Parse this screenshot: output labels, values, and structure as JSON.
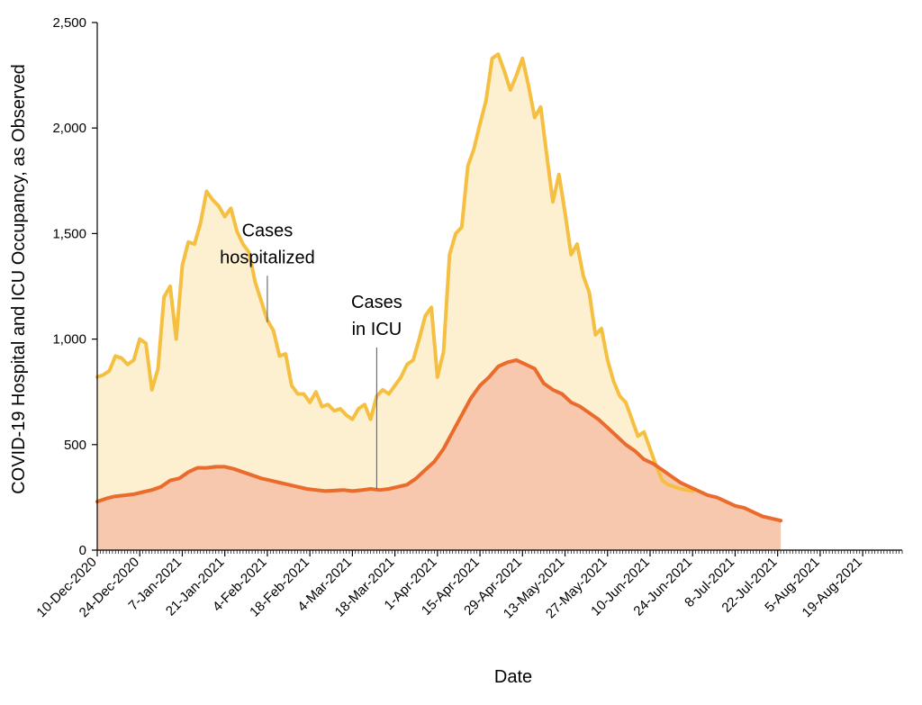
{
  "chart_data": {
    "type": "area",
    "title": "",
    "xlabel": "Date",
    "ylabel": "COVID-19 Hospital and ICU Occupancy, as Observed",
    "ylim": [
      0,
      2500
    ],
    "yticks": [
      0,
      500,
      1000,
      1500,
      2000,
      2500
    ],
    "ytick_labels": [
      "0",
      "500",
      "1,000",
      "1,500",
      "2,000",
      "2,500"
    ],
    "xlim": [
      "2020-12-10",
      "2021-09-01"
    ],
    "xtick_labels": [
      "10-Dec-2020",
      "24-Dec-2020",
      "7-Jan-2021",
      "21-Jan-2021",
      "4-Feb-2021",
      "18-Feb-2021",
      "4-Mar-2021",
      "18-Mar-2021",
      "1-Apr-2021",
      "15-Apr-2021",
      "29-Apr-2021",
      "13-May-2021",
      "27-May-2021",
      "10-Jun-2021",
      "24-Jun-2021",
      "8-Jul-2021",
      "22-Jul-2021",
      "5-Aug-2021",
      "19-Aug-2021"
    ],
    "grid": false,
    "colors": {
      "hospital_line": "#f5bf42",
      "hospital_fill": "#fcf0d0",
      "icu_line": "#ea6b2c",
      "icu_fill": "#f7c8ad"
    },
    "annotations": [
      {
        "lines": [
          "Cases",
          "hospitalized"
        ],
        "x": "2021-02-04",
        "y": 1300,
        "target_y": 1080
      },
      {
        "lines": [
          "Cases",
          "in ICU"
        ],
        "x": "2021-03-12",
        "y": 960,
        "target_y": 290
      }
    ],
    "series": [
      {
        "name": "",
        "key": "hospital",
        "x": [
          "2020-12-10",
          "2020-12-12",
          "2020-12-14",
          "2020-12-16",
          "2020-12-18",
          "2020-12-20",
          "2020-12-22",
          "2020-12-24",
          "2020-12-26",
          "2020-12-28",
          "2020-12-30",
          "2021-01-01",
          "2021-01-03",
          "2021-01-05",
          "2021-01-07",
          "2021-01-09",
          "2021-01-11",
          "2021-01-13",
          "2021-01-15",
          "2021-01-17",
          "2021-01-19",
          "2021-01-21",
          "2021-01-23",
          "2021-01-25",
          "2021-01-27",
          "2021-01-29",
          "2021-01-31",
          "2021-02-02",
          "2021-02-04",
          "2021-02-06",
          "2021-02-08",
          "2021-02-10",
          "2021-02-12",
          "2021-02-14",
          "2021-02-16",
          "2021-02-18",
          "2021-02-20",
          "2021-02-22",
          "2021-02-24",
          "2021-02-26",
          "2021-02-28",
          "2021-03-02",
          "2021-03-04",
          "2021-03-06",
          "2021-03-08",
          "2021-03-10",
          "2021-03-12",
          "2021-03-14",
          "2021-03-16",
          "2021-03-18",
          "2021-03-20",
          "2021-03-22",
          "2021-03-24",
          "2021-03-26",
          "2021-03-28",
          "2021-03-30",
          "2021-04-01",
          "2021-04-03",
          "2021-04-05",
          "2021-04-07",
          "2021-04-09",
          "2021-04-11",
          "2021-04-13",
          "2021-04-15",
          "2021-04-17",
          "2021-04-19",
          "2021-04-21",
          "2021-04-23",
          "2021-04-25",
          "2021-04-27",
          "2021-04-29",
          "2021-05-01",
          "2021-05-03",
          "2021-05-05",
          "2021-05-07",
          "2021-05-09",
          "2021-05-11",
          "2021-05-13",
          "2021-05-15",
          "2021-05-17",
          "2021-05-19",
          "2021-05-21",
          "2021-05-23",
          "2021-05-25",
          "2021-05-27",
          "2021-05-29",
          "2021-05-31",
          "2021-06-02",
          "2021-06-04",
          "2021-06-06",
          "2021-06-08",
          "2021-06-10",
          "2021-06-12",
          "2021-06-14",
          "2021-06-16",
          "2021-06-18",
          "2021-06-20",
          "2021-06-22",
          "2021-06-24"
        ],
        "values": [
          820,
          830,
          850,
          920,
          910,
          880,
          900,
          1000,
          980,
          760,
          860,
          1200,
          1250,
          1000,
          1350,
          1460,
          1450,
          1550,
          1700,
          1660,
          1630,
          1580,
          1620,
          1510,
          1450,
          1410,
          1270,
          1180,
          1090,
          1040,
          920,
          930,
          780,
          740,
          740,
          700,
          750,
          680,
          690,
          660,
          670,
          640,
          620,
          670,
          690,
          620,
          730,
          760,
          740,
          780,
          820,
          880,
          900,
          1000,
          1110,
          1150,
          820,
          940,
          1400,
          1500,
          1530,
          1820,
          1900,
          2020,
          2130,
          2330,
          2350,
          2270,
          2180,
          2250,
          2330,
          2200,
          2050,
          2100,
          1870,
          1650,
          1780,
          1600,
          1400,
          1450,
          1300,
          1220,
          1020,
          1050,
          900,
          800,
          730,
          700,
          620,
          540,
          560,
          480,
          400,
          330,
          310,
          300,
          290,
          285,
          280
        ]
      },
      {
        "name": "",
        "key": "icu",
        "x": [
          "2020-12-10",
          "2020-12-13",
          "2020-12-16",
          "2020-12-19",
          "2020-12-22",
          "2020-12-25",
          "2020-12-28",
          "2020-12-31",
          "2021-01-03",
          "2021-01-06",
          "2021-01-09",
          "2021-01-12",
          "2021-01-15",
          "2021-01-18",
          "2021-01-21",
          "2021-01-24",
          "2021-01-27",
          "2021-01-30",
          "2021-02-02",
          "2021-02-05",
          "2021-02-08",
          "2021-02-11",
          "2021-02-14",
          "2021-02-17",
          "2021-02-20",
          "2021-02-23",
          "2021-02-26",
          "2021-03-01",
          "2021-03-04",
          "2021-03-07",
          "2021-03-10",
          "2021-03-13",
          "2021-03-16",
          "2021-03-19",
          "2021-03-22",
          "2021-03-25",
          "2021-03-28",
          "2021-03-31",
          "2021-04-03",
          "2021-04-06",
          "2021-04-09",
          "2021-04-12",
          "2021-04-15",
          "2021-04-18",
          "2021-04-21",
          "2021-04-24",
          "2021-04-27",
          "2021-04-30",
          "2021-05-03",
          "2021-05-06",
          "2021-05-09",
          "2021-05-12",
          "2021-05-15",
          "2021-05-18",
          "2021-05-21",
          "2021-05-24",
          "2021-05-27",
          "2021-05-30",
          "2021-06-02",
          "2021-06-05",
          "2021-06-08",
          "2021-06-11",
          "2021-06-14",
          "2021-06-17",
          "2021-06-20",
          "2021-06-23",
          "2021-06-26",
          "2021-06-29",
          "2021-07-02",
          "2021-07-05",
          "2021-07-08",
          "2021-07-11",
          "2021-07-14",
          "2021-07-17",
          "2021-07-20",
          "2021-07-23"
        ],
        "values": [
          230,
          245,
          255,
          260,
          265,
          275,
          285,
          300,
          330,
          340,
          370,
          390,
          390,
          395,
          395,
          385,
          370,
          355,
          340,
          330,
          320,
          310,
          300,
          290,
          285,
          280,
          282,
          285,
          280,
          284,
          290,
          285,
          290,
          300,
          310,
          340,
          380,
          420,
          480,
          560,
          640,
          720,
          780,
          820,
          870,
          890,
          900,
          880,
          860,
          790,
          760,
          740,
          700,
          680,
          650,
          620,
          580,
          540,
          500,
          470,
          430,
          410,
          380,
          350,
          320,
          300,
          280,
          260,
          250,
          230,
          210,
          200,
          180,
          160,
          150,
          140
        ]
      }
    ]
  }
}
